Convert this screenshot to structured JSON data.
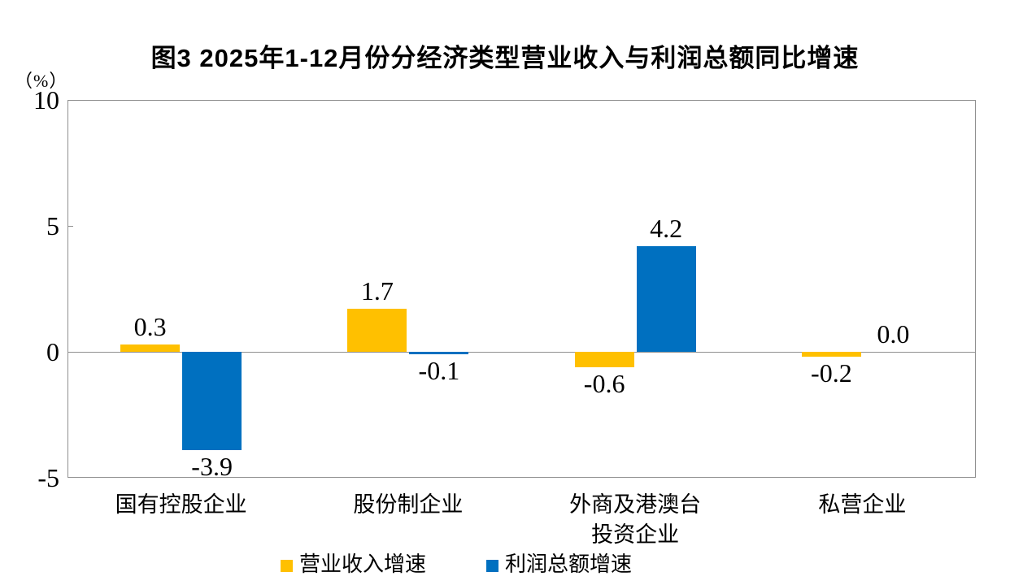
{
  "chart": {
    "title": "图3  2025年1-12月份分经济类型营业收入与利润总额同比增速",
    "unit_label": "（%）"
  },
  "chart_data": {
    "type": "bar",
    "title": "图3  2025年1-12月份分经济类型营业收入与利润总额同比增速",
    "categories": [
      "国有控股企业",
      "股份制企业",
      "外商及港澳台\n投资企业",
      "私营企业"
    ],
    "series": [
      {
        "name": "营业收入增速",
        "color": "#FFC000",
        "values": [
          0.3,
          1.7,
          -0.6,
          -0.2
        ]
      },
      {
        "name": "利润总额增速",
        "color": "#0070C0",
        "values": [
          -3.9,
          -0.1,
          4.2,
          0.0
        ]
      }
    ],
    "xlabel": "",
    "ylabel": "（%）",
    "ylim": [
      -5,
      10
    ],
    "yticks": [
      10,
      5,
      0,
      -5
    ],
    "grid": false,
    "zero_line": true,
    "data_labels": true,
    "legend_position": "bottom",
    "axis_color": "#8f8f8f"
  }
}
